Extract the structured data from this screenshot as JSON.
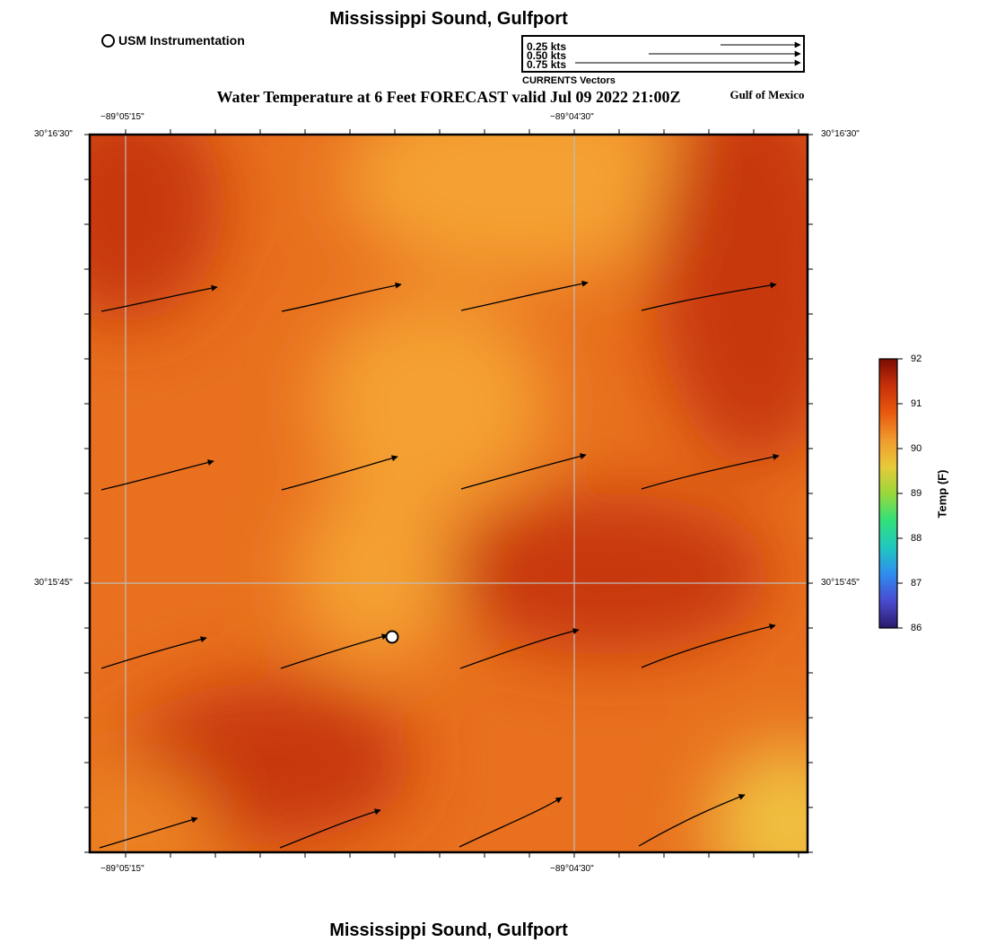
{
  "header": {
    "title": "Mississippi Sound, Gulfport",
    "footer_title": "Mississippi Sound, Gulfport",
    "map_title": "Water Temperature at 6 Feet FORECAST valid Jul 09 2022 21:00Z",
    "region_label": "Gulf of Mexico"
  },
  "legend": {
    "station_label": "USM Instrumentation",
    "vector_scale": [
      {
        "label": "0.25 kts",
        "speed": 0.25
      },
      {
        "label": "0.50 kts",
        "speed": 0.5
      },
      {
        "label": "0.75 kts",
        "speed": 0.75
      }
    ],
    "vector_caption": "CURRENTS Vectors"
  },
  "axes": {
    "lon_ticks": [
      "−89°05'15\"",
      "−89°04'30\""
    ],
    "lat_ticks": [
      "30°16'30\"",
      "30°15'45\""
    ]
  },
  "colorbar": {
    "title": "Temp (F)",
    "min": 86,
    "max": 92,
    "ticks": [
      "92",
      "91",
      "90",
      "89",
      "88",
      "87",
      "86"
    ],
    "colors": [
      "#7a0c02",
      "#c8300a",
      "#e8590e",
      "#f19a2e",
      "#e8c93a",
      "#9ad83a",
      "#32e07a",
      "#20c8c0",
      "#2f8cf0",
      "#4a4ad0",
      "#2a1a6a"
    ]
  },
  "field": {
    "colors": {
      "hot": "#c8380a",
      "mid": "#e8701e",
      "cool": "#f4a030",
      "coolest": "#f0c040"
    }
  },
  "currents": {
    "direction": "east-northeast",
    "approx_speed_kts": 0.5
  },
  "station": {
    "name": "USM Instrumentation"
  }
}
